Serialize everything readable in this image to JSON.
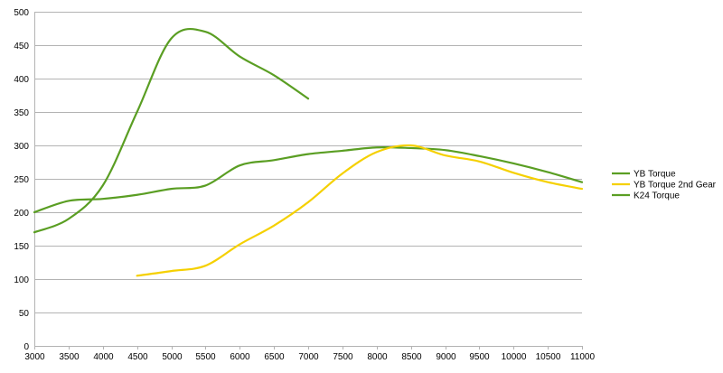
{
  "chart_data": {
    "type": "line",
    "title": "",
    "xlabel": "",
    "ylabel": "",
    "xlim": [
      3000,
      11000
    ],
    "ylim": [
      0,
      500
    ],
    "x_ticks": [
      3000,
      3500,
      4000,
      4500,
      5000,
      5500,
      6000,
      6500,
      7000,
      7500,
      8000,
      8500,
      9000,
      9500,
      10000,
      10500,
      11000
    ],
    "y_ticks": [
      0,
      50,
      100,
      150,
      200,
      250,
      300,
      350,
      400,
      450,
      500
    ],
    "grid": "horizontal",
    "legend": "right",
    "series": [
      {
        "name": "YB Torque",
        "color": "#5a9e23",
        "x": [
          3000,
          3500,
          4000,
          4500,
          5000,
          5500,
          6000,
          6500,
          7000,
          7500,
          8000,
          8500,
          9000,
          9500,
          10000,
          10500,
          11000
        ],
        "y": [
          200,
          217,
          220,
          226,
          235,
          240,
          270,
          278,
          287,
          292,
          297,
          296,
          293,
          284,
          273,
          260,
          245
        ]
      },
      {
        "name": "YB Torque 2nd Gear",
        "color": "#f5d000",
        "x": [
          4500,
          5000,
          5500,
          6000,
          6500,
          7000,
          7500,
          8000,
          8500,
          9000,
          9500,
          10000,
          10500,
          11000
        ],
        "y": [
          105,
          112,
          120,
          152,
          180,
          215,
          258,
          290,
          300,
          285,
          276,
          259,
          245,
          235
        ]
      },
      {
        "name": "K24 Torque",
        "color": "#5a9e23",
        "x": [
          3000,
          3500,
          4000,
          4500,
          5000,
          5500,
          6000,
          6500,
          7000
        ],
        "y": [
          170,
          190,
          240,
          350,
          460,
          470,
          433,
          405,
          370
        ]
      }
    ]
  }
}
